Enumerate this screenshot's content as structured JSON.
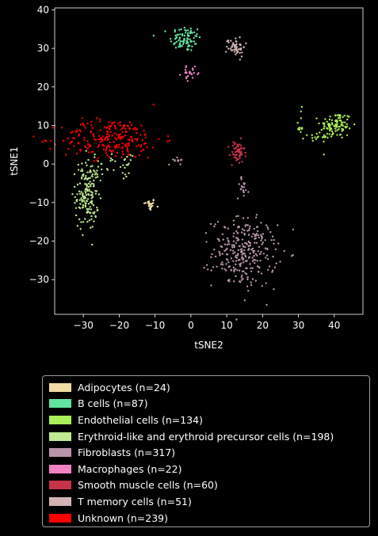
{
  "chart_data": {
    "type": "scatter",
    "title": "",
    "xlabel": "tSNE2",
    "ylabel": "tSNE1",
    "xlim": [
      -38,
      48
    ],
    "ylim": [
      -39,
      40.5
    ],
    "xticks": [
      -30,
      -20,
      -10,
      0,
      10,
      20,
      30,
      40
    ],
    "yticks": [
      -30,
      -20,
      -10,
      0,
      10,
      20,
      30,
      40
    ],
    "grid": false,
    "legend_position": "below plot",
    "series": [
      {
        "name": "Adipocytes (n=24)",
        "color": "#f0dca4",
        "n": 24,
        "clusters": [
          {
            "cx": -11.5,
            "cy": -10.5,
            "sx": 0.8,
            "sy": 0.8
          }
        ]
      },
      {
        "name": "B cells (n=87)",
        "color": "#62e3a0",
        "n": 87,
        "clusters": [
          {
            "cx": -1.5,
            "cy": 32.5,
            "sx": 2.2,
            "sy": 1.7
          }
        ]
      },
      {
        "name": "Endothelial cells (n=134)",
        "color": "#aaef57",
        "n": 134,
        "clusters": [
          {
            "cx": 40.5,
            "cy": 10,
            "sx": 2.2,
            "sy": 1.8,
            "w": 0.8
          },
          {
            "cx": 30.5,
            "cy": 10,
            "sx": 0.5,
            "sy": 2.0,
            "w": 0.08
          },
          {
            "cx": 35,
            "cy": 7,
            "sx": 1.5,
            "sy": 0.5,
            "w": 0.12
          }
        ]
      },
      {
        "name": "Erythroid-like and erythroid precursor cells (n=198)",
        "color": "#bfea91",
        "n": 198,
        "clusters": [
          {
            "cx": -29,
            "cy": -8,
            "sx": 1.6,
            "sy": 4.5,
            "w": 0.8
          },
          {
            "cx": -25,
            "cy": -1,
            "sx": 2.5,
            "sy": 2.0,
            "w": 0.12
          },
          {
            "cx": -18,
            "cy": -0.5,
            "sx": 0.8,
            "sy": 1.3,
            "w": 0.08
          }
        ]
      },
      {
        "name": "Fibroblasts (n=317)",
        "color": "#b894aa",
        "n": 317,
        "clusters": [
          {
            "cx": 15,
            "cy": -23,
            "sx": 4.5,
            "sy": 4.5,
            "w": 0.9
          },
          {
            "cx": 14.5,
            "cy": -6,
            "sx": 0.8,
            "sy": 1.4,
            "w": 0.06
          },
          {
            "cx": -4,
            "cy": 1,
            "sx": 1.0,
            "sy": 0.6,
            "w": 0.04
          }
        ]
      },
      {
        "name": "Macrophages (n=22)",
        "color": "#f183c3",
        "n": 22,
        "clusters": [
          {
            "cx": 0,
            "cy": 23.5,
            "sx": 1.3,
            "sy": 0.8
          }
        ]
      },
      {
        "name": "Smooth muscle cells (n=60)",
        "color": "#c7344a",
        "n": 60,
        "clusters": [
          {
            "cx": 13,
            "cy": 3,
            "sx": 1.0,
            "sy": 1.5
          }
        ]
      },
      {
        "name": "T memory cells (n=51)",
        "color": "#d2b4b4",
        "n": 51,
        "clusters": [
          {
            "cx": 12.5,
            "cy": 30.5,
            "sx": 1.3,
            "sy": 1.3
          }
        ]
      },
      {
        "name": "Unknown (n=239)",
        "color": "#ff0000",
        "n": 239,
        "clusters": [
          {
            "cx": -22,
            "cy": 6.5,
            "sx": 7.0,
            "sy": 2.6
          }
        ]
      }
    ]
  }
}
